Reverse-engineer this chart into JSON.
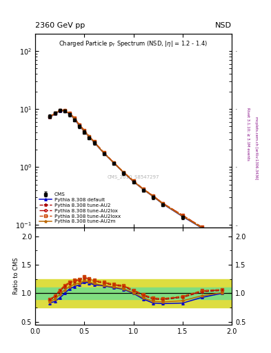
{
  "title_top_left": "2360 GeV pp",
  "title_top_right": "NSD",
  "main_title": "Charged Particle p_{T} Spectrum (NSD, |#eta| = 1.2 - 1.4)",
  "watermark": "CMS_2010_S8547297",
  "ylabel_ratio": "Ratio to CMS",
  "xlim": [
    0.0,
    2.0
  ],
  "ylim_main": [
    0.09,
    200
  ],
  "ylim_ratio": [
    0.45,
    2.15
  ],
  "pt_values": [
    0.15,
    0.2,
    0.25,
    0.3,
    0.35,
    0.4,
    0.45,
    0.5,
    0.55,
    0.6,
    0.7,
    0.8,
    0.9,
    1.0,
    1.1,
    1.2,
    1.3,
    1.5,
    1.7,
    1.9
  ],
  "cms_y": [
    7.5,
    8.5,
    9.5,
    9.2,
    8.0,
    6.5,
    5.0,
    4.0,
    3.2,
    2.6,
    1.7,
    1.15,
    0.78,
    0.55,
    0.4,
    0.3,
    0.225,
    0.135,
    0.085,
    0.055
  ],
  "cms_yerr": [
    0.5,
    0.5,
    0.5,
    0.5,
    0.5,
    0.4,
    0.3,
    0.25,
    0.2,
    0.15,
    0.1,
    0.07,
    0.05,
    0.035,
    0.025,
    0.018,
    0.013,
    0.008,
    0.005,
    0.003
  ],
  "default_y": [
    7.2,
    8.2,
    9.3,
    9.3,
    8.2,
    6.7,
    5.1,
    4.1,
    3.3,
    2.65,
    1.72,
    1.17,
    0.8,
    0.56,
    0.41,
    0.31,
    0.23,
    0.14,
    0.088,
    0.056
  ],
  "au2_y": [
    7.3,
    8.4,
    9.5,
    9.5,
    8.4,
    6.9,
    5.3,
    4.2,
    3.35,
    2.7,
    1.75,
    1.18,
    0.81,
    0.57,
    0.415,
    0.315,
    0.235,
    0.145,
    0.09,
    0.058
  ],
  "au2lox_y": [
    7.35,
    8.45,
    9.55,
    9.55,
    8.45,
    6.95,
    5.35,
    4.25,
    3.38,
    2.72,
    1.76,
    1.19,
    0.815,
    0.575,
    0.418,
    0.317,
    0.237,
    0.147,
    0.091,
    0.059
  ],
  "au2loxx_y": [
    7.4,
    8.5,
    9.6,
    9.6,
    8.5,
    7.0,
    5.4,
    4.3,
    3.4,
    2.74,
    1.77,
    1.2,
    0.82,
    0.58,
    0.42,
    0.32,
    0.238,
    0.148,
    0.092,
    0.06
  ],
  "au2m_y": [
    7.25,
    8.3,
    9.4,
    9.4,
    8.3,
    6.8,
    5.2,
    4.15,
    3.32,
    2.67,
    1.73,
    1.175,
    0.805,
    0.565,
    0.412,
    0.312,
    0.232,
    0.142,
    0.089,
    0.057
  ],
  "green_band": [
    0.9,
    1.1
  ],
  "yellow_band": [
    0.75,
    1.25
  ],
  "ratio_default": [
    0.83,
    0.86,
    0.92,
    1.0,
    1.08,
    1.12,
    1.15,
    1.2,
    1.18,
    1.15,
    1.13,
    1.1,
    1.07,
    1.0,
    0.9,
    0.83,
    0.82,
    0.83,
    0.93,
    1.0
  ],
  "ratio_au2": [
    0.88,
    0.94,
    1.04,
    1.12,
    1.18,
    1.21,
    1.23,
    1.27,
    1.24,
    1.21,
    1.18,
    1.14,
    1.12,
    1.04,
    0.96,
    0.9,
    0.89,
    0.93,
    1.03,
    1.05
  ],
  "ratio_au2lox": [
    0.89,
    0.95,
    1.05,
    1.13,
    1.19,
    1.22,
    1.24,
    1.28,
    1.25,
    1.22,
    1.19,
    1.15,
    1.13,
    1.05,
    0.97,
    0.91,
    0.9,
    0.94,
    1.04,
    1.06
  ],
  "ratio_au2loxx": [
    0.9,
    0.96,
    1.06,
    1.14,
    1.2,
    1.23,
    1.25,
    1.29,
    1.26,
    1.23,
    1.2,
    1.16,
    1.14,
    1.06,
    0.98,
    0.92,
    0.91,
    0.95,
    1.05,
    1.07
  ],
  "ratio_au2m": [
    0.85,
    0.9,
    0.98,
    1.06,
    1.12,
    1.16,
    1.18,
    1.22,
    1.2,
    1.17,
    1.14,
    1.11,
    1.08,
    1.01,
    0.92,
    0.86,
    0.85,
    0.87,
    0.96,
    1.01
  ],
  "color_default": "#0000cc",
  "color_au2": "#aa0000",
  "color_au2lox": "#bb0000",
  "color_au2loxx": "#cc4400",
  "color_au2m": "#bb6600",
  "green_color": "#80dd80",
  "yellow_color": "#dddd40"
}
